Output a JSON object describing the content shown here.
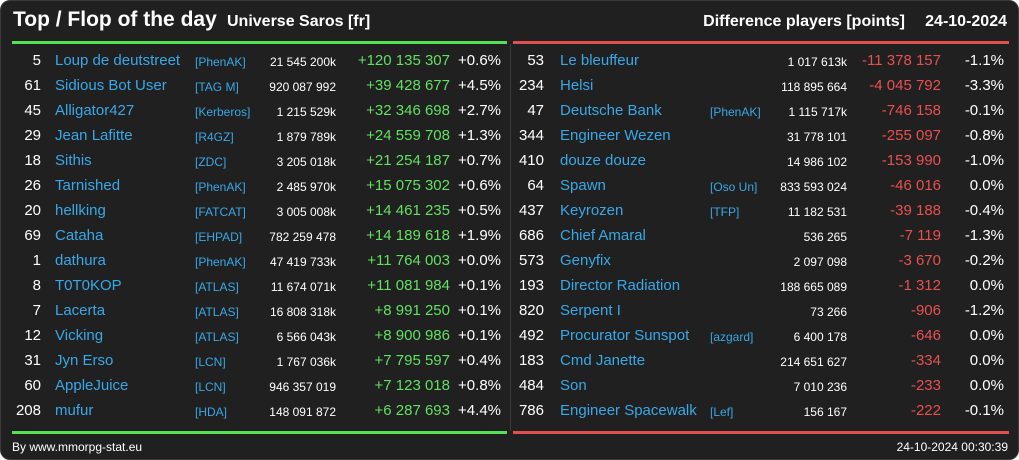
{
  "header": {
    "title": "Top / Flop of the day",
    "universe": "Universe Saros [fr]",
    "metric": "Difference players [points]",
    "date": "24-10-2024"
  },
  "colors": {
    "background": "#202020",
    "top_accent": "#55e055",
    "flop_accent": "#e05050",
    "name": "#39a8e8",
    "positive": "#62e062",
    "negative": "#e85050"
  },
  "top": [
    {
      "rank": "5",
      "name": "Loup de deutstreet",
      "alliance": "[PhenAK]",
      "points": "21 545 200k",
      "diff": "+120 135 307",
      "pct": "+0.6%"
    },
    {
      "rank": "61",
      "name": "Sidious Bot User",
      "alliance": "[TAG M]",
      "points": "920 087 992",
      "diff": "+39 428 677",
      "pct": "+4.5%"
    },
    {
      "rank": "45",
      "name": "Alligator427",
      "alliance": "[Kerberos]",
      "points": "1 215 529k",
      "diff": "+32 346 698",
      "pct": "+2.7%"
    },
    {
      "rank": "29",
      "name": "Jean Lafitte",
      "alliance": "[R4GZ]",
      "points": "1 879 789k",
      "diff": "+24 559 708",
      "pct": "+1.3%"
    },
    {
      "rank": "18",
      "name": "Sithis",
      "alliance": "[ZDC]",
      "points": "3 205 018k",
      "diff": "+21 254 187",
      "pct": "+0.7%"
    },
    {
      "rank": "26",
      "name": "Tarnished",
      "alliance": "[PhenAK]",
      "points": "2 485 970k",
      "diff": "+15 075 302",
      "pct": "+0.6%"
    },
    {
      "rank": "20",
      "name": "hellking",
      "alliance": "[FATCAT]",
      "points": "3 005 008k",
      "diff": "+14 461 235",
      "pct": "+0.5%"
    },
    {
      "rank": "69",
      "name": "Cataha",
      "alliance": "[EHPAD]",
      "points": "782 259 478",
      "diff": "+14 189 618",
      "pct": "+1.9%"
    },
    {
      "rank": "1",
      "name": "dathura",
      "alliance": "[PhenAK]",
      "points": "47 419 733k",
      "diff": "+11 764 003",
      "pct": "+0.0%"
    },
    {
      "rank": "8",
      "name": "T0T0KOP",
      "alliance": "[ATLAS]",
      "points": "11 674 071k",
      "diff": "+11 081 984",
      "pct": "+0.1%"
    },
    {
      "rank": "7",
      "name": "Lacerta",
      "alliance": "[ATLAS]",
      "points": "16 808 318k",
      "diff": "+8 991 250",
      "pct": "+0.1%"
    },
    {
      "rank": "12",
      "name": "Vicking",
      "alliance": "[ATLAS]",
      "points": "6 566 043k",
      "diff": "+8 900 986",
      "pct": "+0.1%"
    },
    {
      "rank": "31",
      "name": "Jyn Erso",
      "alliance": "[LCN]",
      "points": "1 767 036k",
      "diff": "+7 795 597",
      "pct": "+0.4%"
    },
    {
      "rank": "60",
      "name": "AppleJuice",
      "alliance": "[LCN]",
      "points": "946 357 019",
      "diff": "+7 123 018",
      "pct": "+0.8%"
    },
    {
      "rank": "208",
      "name": "mufur",
      "alliance": "[HDA]",
      "points": "148 091 872",
      "diff": "+6 287 693",
      "pct": "+4.4%"
    }
  ],
  "flop": [
    {
      "rank": "53",
      "name": "Le bleuffeur",
      "alliance": "",
      "points": "1 017 613k",
      "diff": "-11 378 157",
      "pct": "-1.1%"
    },
    {
      "rank": "234",
      "name": "Helsi",
      "alliance": "",
      "points": "118 895 664",
      "diff": "-4 045 792",
      "pct": "-3.3%"
    },
    {
      "rank": "47",
      "name": "Deutsche Bank",
      "alliance": "[PhenAK]",
      "points": "1 115 717k",
      "diff": "-746 158",
      "pct": "-0.1%"
    },
    {
      "rank": "344",
      "name": "Engineer Wezen",
      "alliance": "",
      "points": "31 778 101",
      "diff": "-255 097",
      "pct": "-0.8%"
    },
    {
      "rank": "410",
      "name": "douze douze",
      "alliance": "",
      "points": "14 986 102",
      "diff": "-153 990",
      "pct": "-1.0%"
    },
    {
      "rank": "64",
      "name": "Spawn",
      "alliance": "[Oso Un]",
      "points": "833 593 024",
      "diff": "-46 016",
      "pct": "0.0%"
    },
    {
      "rank": "437",
      "name": "Keyrozen",
      "alliance": "[TFP]",
      "points": "11 182 531",
      "diff": "-39 188",
      "pct": "-0.4%"
    },
    {
      "rank": "686",
      "name": "Chief Amaral",
      "alliance": "",
      "points": "536 265",
      "diff": "-7 119",
      "pct": "-1.3%"
    },
    {
      "rank": "573",
      "name": "Genyfix",
      "alliance": "",
      "points": "2 097 098",
      "diff": "-3 670",
      "pct": "-0.2%"
    },
    {
      "rank": "193",
      "name": "Director Radiation",
      "alliance": "",
      "points": "188 665 089",
      "diff": "-1 312",
      "pct": "0.0%"
    },
    {
      "rank": "820",
      "name": "Serpent I",
      "alliance": "",
      "points": "73 266",
      "diff": "-906",
      "pct": "-1.2%"
    },
    {
      "rank": "492",
      "name": "Procurator Sunspot",
      "alliance": "[azgard]",
      "points": "6 400 178",
      "diff": "-646",
      "pct": "0.0%"
    },
    {
      "rank": "183",
      "name": "Cmd Janette",
      "alliance": "",
      "points": "214 651 627",
      "diff": "-334",
      "pct": "0.0%"
    },
    {
      "rank": "484",
      "name": "Son",
      "alliance": "",
      "points": "7 010 236",
      "diff": "-233",
      "pct": "0.0%"
    },
    {
      "rank": "786",
      "name": "Engineer Spacewalk",
      "alliance": "[Lef]",
      "points": "156 167",
      "diff": "-222",
      "pct": "-0.1%"
    }
  ],
  "footer": {
    "source": "By www.mmorpg-stat.eu",
    "timestamp": "24-10-2024 00:30:39"
  }
}
